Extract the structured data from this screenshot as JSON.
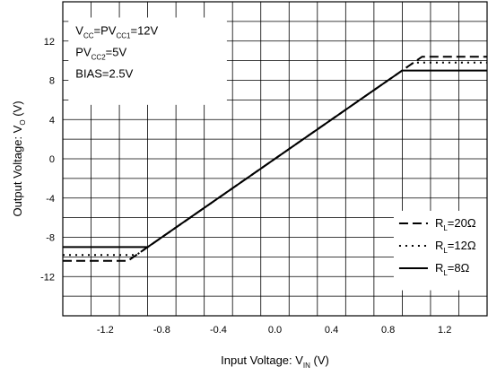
{
  "chart_data": {
    "type": "line",
    "title": "",
    "xlabel": {
      "main": "Input Voltage: V",
      "sub": "IN",
      "unit": " (V)"
    },
    "ylabel": {
      "main": "Output Voltage: V",
      "sub": "O",
      "unit": " (V)"
    },
    "xlim": [
      -1.5,
      1.5
    ],
    "ylim": [
      -16,
      16
    ],
    "xticks": [
      -1.2,
      -0.8,
      -0.4,
      0.0,
      0.4,
      0.8,
      1.2
    ],
    "xtick_labels": [
      "-1.2",
      "-0.8",
      "-0.4",
      "0.0",
      "0.4",
      "0.8",
      "1.2"
    ],
    "yticks": [
      12,
      8,
      4,
      0,
      -4,
      -8,
      -12
    ],
    "ytick_labels": [
      "12",
      "8",
      "4",
      "0",
      "-4",
      "-8",
      "-12"
    ],
    "grid": true,
    "conditions": [
      {
        "parts": [
          [
            "V",
            ""
          ],
          [
            "CC",
            "sub"
          ],
          [
            "=PV",
            ""
          ],
          [
            "CC1",
            "sub"
          ],
          [
            "=12V",
            ""
          ]
        ]
      },
      {
        "parts": [
          [
            "PV",
            ""
          ],
          [
            "CC2",
            "sub"
          ],
          [
            "=5V",
            ""
          ]
        ]
      },
      {
        "parts": [
          [
            "BIAS=2.5V",
            ""
          ]
        ]
      }
    ],
    "legend_position": "bottom-right",
    "series": [
      {
        "name": "R",
        "sub": "L",
        "suffix": "=20Ω",
        "style": "dashed",
        "x": [
          -1.5,
          -1.04,
          1.04,
          1.5
        ],
        "y": [
          -10.4,
          -10.4,
          10.4,
          10.4
        ]
      },
      {
        "name": "R",
        "sub": "L",
        "suffix": "=12Ω",
        "style": "dotted",
        "x": [
          -1.5,
          -0.98,
          0.98,
          1.5
        ],
        "y": [
          -9.8,
          -9.8,
          9.8,
          9.8
        ]
      },
      {
        "name": "R",
        "sub": "L",
        "suffix": "=8Ω",
        "style": "solid",
        "x": [
          -1.5,
          -0.9,
          0.9,
          1.5
        ],
        "y": [
          -9.0,
          -9.0,
          9.0,
          9.0
        ]
      }
    ]
  }
}
